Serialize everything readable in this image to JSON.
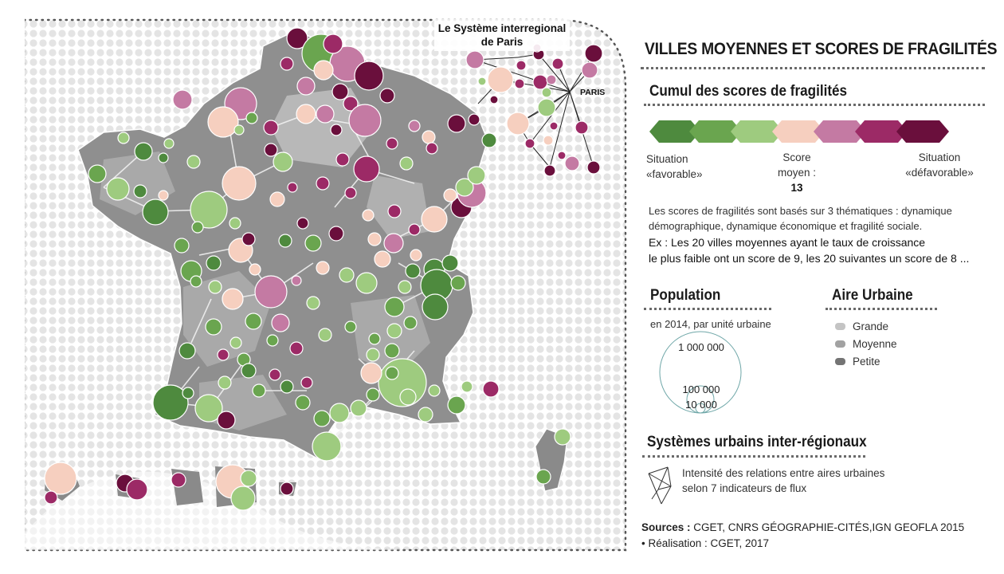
{
  "title": "VILLES MOYENNES ET SCORES DE FRAGILITÉS",
  "paris_system": {
    "title_line1": "Le Système interregional",
    "title_line2": "de Paris",
    "paris_label": "PARIS"
  },
  "score_legend": {
    "heading": "Cumul des scores de fragilités",
    "left_line1": "Situation",
    "left_line2": "«favorable»",
    "middle_line1": "Score",
    "middle_line2": "moyen :",
    "middle_value": "13",
    "right_line1": "Situation",
    "right_line2": "«défavorable»",
    "colors": [
      "#4e8a3e",
      "#6aa54f",
      "#9ecb7f",
      "#f6cfbf",
      "#c47aa3",
      "#9c2a66",
      "#6a0f3c"
    ]
  },
  "description": {
    "line1": "Les scores de fragilités sont basés sur 3 thématiques : dynamique",
    "line2": "démographique, dynamique économique et fragilité sociale.",
    "ex_line1": "Ex : Les 20 villes moyennes ayant le taux de croissance",
    "ex_line2": "le plus faible ont un score de 9, les 20 suivantes un score de 8 ..."
  },
  "population": {
    "heading": "Population",
    "subtitle": "en 2014, par unité urbaine",
    "scale": [
      "1 000 000",
      "100 000",
      "10 000"
    ]
  },
  "aire_urbaine": {
    "heading": "Aire Urbaine",
    "items": [
      {
        "label": "Grande",
        "color": "#c4c4c4"
      },
      {
        "label": "Moyenne",
        "color": "#a2a2a2"
      },
      {
        "label": "Petite",
        "color": "#747474"
      }
    ]
  },
  "systemes": {
    "heading": "Systèmes urbains inter-régionaux",
    "line1": "Intensité des relations entre aires urbaines",
    "line2": "selon 7 indicateurs de flux"
  },
  "sources": {
    "label": "Sources :",
    "text": " CGET, CNRS GÉOGRAPHIE-CITÉS,IGN GEOFLA 2015",
    "realisation": "• Réalisation : CGET, 2017"
  }
}
